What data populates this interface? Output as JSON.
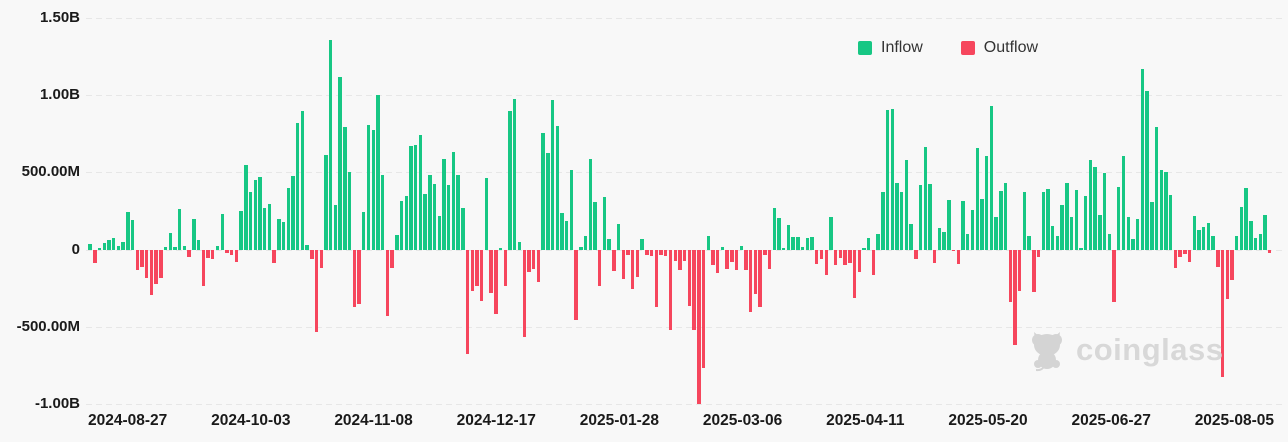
{
  "legend": {
    "inflow_label": "Inflow",
    "outflow_label": "Outflow"
  },
  "watermark": {
    "text": "coinglass"
  },
  "colors": {
    "inflow": "#17c784",
    "outflow": "#f6465d",
    "background": "#f8f8f8",
    "grid": "#e7e7e7",
    "axis_text": "#1a1a1a",
    "watermark": "#d4d4d4"
  },
  "chart_data": {
    "type": "bar",
    "title": "",
    "xlabel": "",
    "ylabel": "",
    "unit": "millions USD (positive = Inflow, negative = Outflow)",
    "grid": "dashed horizontal",
    "legend_position": "top-right",
    "ylim": [
      -1000,
      1500
    ],
    "y_ticks": [
      {
        "label": "1.50B",
        "value": 1500
      },
      {
        "label": "1.00B",
        "value": 1000
      },
      {
        "label": "500.00M",
        "value": 500
      },
      {
        "label": "0",
        "value": 0
      },
      {
        "label": "-500.00M",
        "value": -500
      },
      {
        "label": "-1.00B",
        "value": -1000
      }
    ],
    "x_ticks": [
      "2024-08-27",
      "2024-10-03",
      "2024-11-08",
      "2024-12-17",
      "2025-01-28",
      "2025-03-06",
      "2025-04-11",
      "2025-05-20",
      "2025-06-27",
      "2025-08-05"
    ],
    "values": [
      38,
      -90,
      11,
      40,
      64,
      77,
      26,
      49,
      244,
      192,
      -135,
      -115,
      -182,
      -295,
      -222,
      -182,
      19,
      107,
      17,
      261,
      26,
      -50,
      200,
      62,
      -235,
      -53,
      -60,
      26,
      231,
      -24,
      -32,
      -81,
      252,
      549,
      372,
      454,
      467,
      270,
      296,
      -85,
      197,
      181,
      397,
      475,
      821,
      896,
      28,
      -64,
      -534,
      -118,
      615,
      1356,
      287,
      1119,
      795,
      503,
      -374,
      -353,
      244,
      810,
      773,
      1002,
      482,
      -432,
      -118,
      93,
      313,
      346,
      670,
      680,
      739,
      363,
      481,
      427,
      218,
      590,
      417,
      635,
      481,
      267,
      -673,
      -267,
      -235,
      -331,
      466,
      -282,
      -417,
      11,
      -239,
      900,
      975,
      47,
      -566,
      -145,
      -128,
      -209,
      753,
      625,
      969,
      801,
      239,
      186,
      513,
      -459,
      17,
      85,
      584,
      310,
      -235,
      338,
      68,
      -139,
      165,
      -192,
      -32,
      -256,
      -175,
      68,
      -32,
      -43,
      -374,
      -32,
      -43,
      -524,
      -72,
      -132,
      -72,
      -364,
      -519,
      -1003,
      -767,
      90,
      -100,
      -150,
      20,
      -128,
      -81,
      -132,
      26,
      -132,
      -402,
      -288,
      -375,
      -32,
      -128,
      267,
      203,
      11,
      160,
      79,
      79,
      17,
      75,
      79,
      -96,
      -64,
      -167,
      214,
      -103,
      -53,
      -103,
      -85,
      -316,
      -145,
      6,
      75,
      -167,
      100,
      374,
      905,
      911,
      432,
      374,
      581,
      167,
      -60,
      417,
      667,
      427,
      -90,
      139,
      111,
      321,
      -6,
      -96,
      316,
      103,
      256,
      658,
      325,
      609,
      930,
      209,
      380,
      432,
      -342,
      -615,
      -267,
      374,
      85,
      -274,
      -47,
      370,
      395,
      154,
      85,
      288,
      432,
      214,
      385,
      6,
      346,
      581,
      534,
      224,
      496,
      100,
      -338,
      406,
      609,
      209,
      68,
      197,
      1169,
      1025,
      310,
      797,
      517,
      500,
      353,
      -118,
      -47,
      -26,
      -81,
      218,
      124,
      145,
      171,
      85,
      -115,
      -822,
      -323,
      -194,
      90,
      275,
      398,
      183,
      75,
      103,
      226,
      -21
    ]
  }
}
